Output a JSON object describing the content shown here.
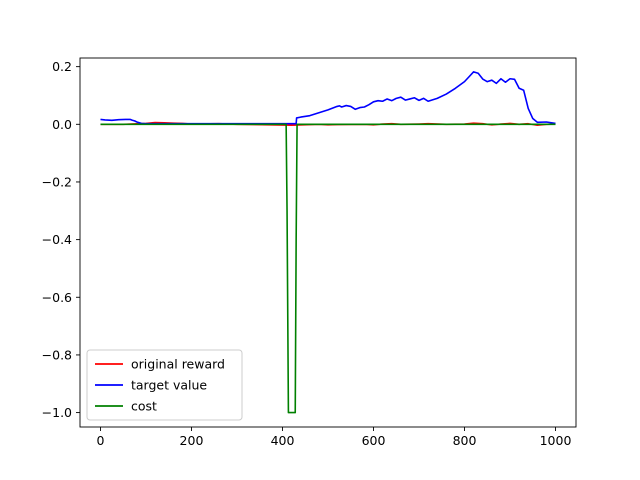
{
  "chart_data": {
    "type": "line",
    "title": "",
    "xlabel": "",
    "ylabel": "",
    "xlim": [
      -45,
      1045
    ],
    "ylim": [
      -1.05,
      0.23
    ],
    "xticks": [
      0,
      200,
      400,
      600,
      800,
      1000
    ],
    "xtick_labels": [
      "0",
      "200",
      "400",
      "600",
      "800",
      "1000"
    ],
    "yticks": [
      0.2,
      0.0,
      -0.2,
      -0.4,
      -0.6,
      -0.8,
      -1.0
    ],
    "ytick_labels": [
      "0.2",
      "0.0",
      "−0.2",
      "−0.4",
      "−0.6",
      "−0.8",
      "−1.0"
    ],
    "grid": false,
    "legend_position": "lower-left",
    "series": [
      {
        "name": "original reward",
        "color": "#ff0000",
        "x": [
          0,
          50,
          100,
          120,
          140,
          160,
          180,
          200,
          260,
          300,
          420,
          480,
          500,
          520,
          580,
          600,
          620,
          640,
          660,
          700,
          720,
          760,
          800,
          820,
          840,
          860,
          880,
          900,
          920,
          940,
          960,
          980,
          1000
        ],
        "y": [
          0.0,
          0.0,
          0.003,
          0.006,
          0.005,
          0.004,
          0.003,
          0.001,
          0.002,
          0.0,
          -0.003,
          0.0,
          -0.002,
          -0.001,
          0.0,
          -0.002,
          0.001,
          0.002,
          0.0,
          0.001,
          0.002,
          0.0,
          0.001,
          0.004,
          0.002,
          -0.002,
          0.001,
          0.003,
          0.0,
          0.002,
          -0.003,
          0.0,
          0.001
        ]
      },
      {
        "name": "target value",
        "color": "#0000ff",
        "x": [
          0,
          10,
          25,
          40,
          55,
          65,
          70,
          75,
          80,
          90,
          100,
          120,
          200,
          300,
          400,
          420,
          425,
          430,
          431,
          440,
          460,
          480,
          500,
          520,
          525,
          530,
          540,
          550,
          560,
          570,
          580,
          590,
          600,
          610,
          620,
          630,
          640,
          650,
          660,
          670,
          680,
          690,
          700,
          710,
          720,
          740,
          760,
          780,
          800,
          810,
          820,
          830,
          840,
          850,
          860,
          870,
          880,
          890,
          900,
          910,
          920,
          930,
          940,
          950,
          960,
          980,
          1000
        ],
        "y": [
          0.017,
          0.015,
          0.014,
          0.016,
          0.017,
          0.017,
          0.014,
          0.012,
          0.008,
          0.003,
          0.002,
          0.002,
          0.002,
          0.002,
          0.002,
          0.002,
          0.002,
          0.002,
          0.022,
          0.025,
          0.03,
          0.04,
          0.05,
          0.062,
          0.064,
          0.06,
          0.065,
          0.062,
          0.052,
          0.058,
          0.06,
          0.068,
          0.078,
          0.082,
          0.08,
          0.088,
          0.082,
          0.09,
          0.094,
          0.084,
          0.088,
          0.092,
          0.083,
          0.09,
          0.08,
          0.09,
          0.105,
          0.125,
          0.148,
          0.165,
          0.182,
          0.177,
          0.157,
          0.148,
          0.153,
          0.142,
          0.158,
          0.146,
          0.158,
          0.156,
          0.125,
          0.118,
          0.055,
          0.02,
          0.007,
          0.008,
          0.003
        ]
      },
      {
        "name": "cost",
        "color": "#008000",
        "x": [
          0,
          100,
          200,
          300,
          380,
          408,
          410,
          413,
          420,
          428,
          430,
          432,
          440,
          500,
          600,
          700,
          800,
          900,
          1000
        ],
        "y": [
          0.0,
          0.0,
          0.0,
          0.0,
          0.0,
          0.0,
          -0.3,
          -1.0,
          -1.0,
          -1.0,
          -0.4,
          0.0,
          0.0,
          0.0,
          0.0,
          0.0,
          0.0,
          0.0,
          0.0
        ]
      }
    ]
  }
}
